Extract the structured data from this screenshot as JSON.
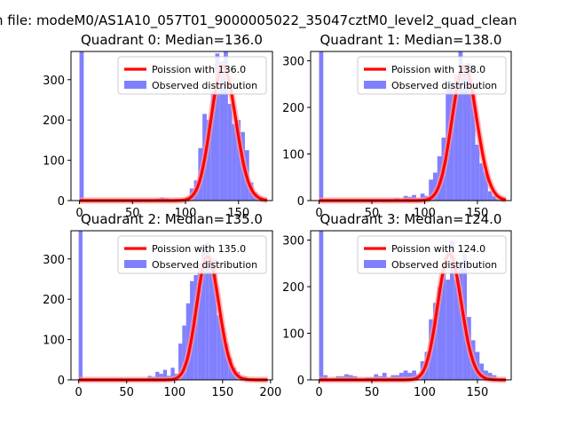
{
  "figure_title": "n file: modeM0/AS1A10_057T01_9000005022_35047cztM0_level2_quad_clean",
  "colors": {
    "hist": "#8080ff",
    "line": "#ff0000",
    "line_halo": "#ff9999",
    "frame": "#000000"
  },
  "chart_data": [
    {
      "type": "bar",
      "title": "Quadrant 0: Median=136.0",
      "median": 136.0,
      "legend": [
        "Poission with 136.0",
        "Observed distribution"
      ],
      "xlim": [
        -8,
        182
      ],
      "ylim": [
        0,
        370
      ],
      "xticks": [
        0,
        50,
        100,
        150
      ],
      "yticks": [
        0,
        100,
        200,
        300
      ],
      "bin_width": 4,
      "bars": [
        [
          0,
          370
        ],
        [
          72,
          5
        ],
        [
          76,
          8
        ],
        [
          80,
          6
        ],
        [
          88,
          4
        ],
        [
          100,
          8
        ],
        [
          104,
          30
        ],
        [
          108,
          50
        ],
        [
          112,
          130
        ],
        [
          116,
          215
        ],
        [
          120,
          200
        ],
        [
          124,
          270
        ],
        [
          128,
          365
        ],
        [
          132,
          345
        ],
        [
          136,
          370
        ],
        [
          140,
          240
        ],
        [
          144,
          190
        ],
        [
          148,
          200
        ],
        [
          152,
          170
        ],
        [
          156,
          125
        ],
        [
          160,
          45
        ],
        [
          164,
          20
        ],
        [
          168,
          5
        ],
        [
          172,
          3
        ]
      ]
    },
    {
      "type": "bar",
      "title": "Quadrant 1: Median=138.0",
      "median": 138.0,
      "legend": [
        "Poission with 138.0",
        "Observed distribution"
      ],
      "xlim": [
        -8,
        182
      ],
      "ylim": [
        0,
        320
      ],
      "xticks": [
        0,
        50,
        100,
        150
      ],
      "yticks": [
        0,
        100,
        200,
        300
      ],
      "bin_width": 4,
      "bars": [
        [
          0,
          320
        ],
        [
          72,
          5
        ],
        [
          80,
          10
        ],
        [
          84,
          8
        ],
        [
          88,
          12
        ],
        [
          92,
          5
        ],
        [
          96,
          15
        ],
        [
          100,
          10
        ],
        [
          104,
          45
        ],
        [
          108,
          60
        ],
        [
          112,
          95
        ],
        [
          116,
          135
        ],
        [
          120,
          240
        ],
        [
          124,
          255
        ],
        [
          128,
          270
        ],
        [
          132,
          320
        ],
        [
          136,
          285
        ],
        [
          140,
          295
        ],
        [
          144,
          250
        ],
        [
          148,
          120
        ],
        [
          152,
          80
        ],
        [
          156,
          60
        ],
        [
          160,
          20
        ],
        [
          164,
          10
        ],
        [
          168,
          3
        ]
      ]
    },
    {
      "type": "bar",
      "title": "Quadrant 2: Median=135.0",
      "median": 135.0,
      "legend": [
        "Poission with 135.0",
        "Observed distribution"
      ],
      "xlim": [
        -8,
        202
      ],
      "ylim": [
        0,
        370
      ],
      "xticks": [
        0,
        50,
        100,
        150,
        200
      ],
      "yticks": [
        0,
        100,
        200,
        300
      ],
      "bin_width": 4,
      "bars": [
        [
          0,
          370
        ],
        [
          72,
          10
        ],
        [
          76,
          8
        ],
        [
          80,
          20
        ],
        [
          84,
          15
        ],
        [
          88,
          25
        ],
        [
          92,
          10
        ],
        [
          96,
          30
        ],
        [
          100,
          15
        ],
        [
          104,
          90
        ],
        [
          108,
          135
        ],
        [
          112,
          190
        ],
        [
          116,
          245
        ],
        [
          120,
          260
        ],
        [
          124,
          290
        ],
        [
          128,
          330
        ],
        [
          132,
          340
        ],
        [
          136,
          300
        ],
        [
          140,
          300
        ],
        [
          144,
          160
        ],
        [
          148,
          130
        ],
        [
          152,
          90
        ],
        [
          156,
          55
        ],
        [
          160,
          30
        ],
        [
          164,
          20
        ],
        [
          168,
          5
        ],
        [
          172,
          8
        ],
        [
          176,
          3
        ]
      ]
    },
    {
      "type": "bar",
      "title": "Quadrant 3: Median=124.0",
      "median": 124.0,
      "legend": [
        "Poission with 124.0",
        "Observed distribution"
      ],
      "xlim": [
        -8,
        182
      ],
      "ylim": [
        0,
        320
      ],
      "xticks": [
        0,
        50,
        100,
        150
      ],
      "yticks": [
        0,
        100,
        200,
        300
      ],
      "bin_width": 4,
      "bars": [
        [
          0,
          320
        ],
        [
          4,
          10
        ],
        [
          16,
          8
        ],
        [
          20,
          8
        ],
        [
          24,
          12
        ],
        [
          28,
          10
        ],
        [
          32,
          8
        ],
        [
          44,
          5
        ],
        [
          48,
          5
        ],
        [
          52,
          12
        ],
        [
          56,
          8
        ],
        [
          60,
          15
        ],
        [
          64,
          5
        ],
        [
          68,
          10
        ],
        [
          72,
          10
        ],
        [
          76,
          15
        ],
        [
          80,
          20
        ],
        [
          84,
          15
        ],
        [
          88,
          20
        ],
        [
          92,
          12
        ],
        [
          96,
          40
        ],
        [
          100,
          60
        ],
        [
          104,
          130
        ],
        [
          108,
          165
        ],
        [
          112,
          200
        ],
        [
          116,
          250
        ],
        [
          120,
          215
        ],
        [
          124,
          300
        ],
        [
          128,
          215
        ],
        [
          132,
          255
        ],
        [
          136,
          270
        ],
        [
          140,
          135
        ],
        [
          144,
          85
        ],
        [
          148,
          60
        ],
        [
          152,
          35
        ],
        [
          156,
          20
        ],
        [
          160,
          15
        ],
        [
          164,
          10
        ]
      ]
    }
  ]
}
